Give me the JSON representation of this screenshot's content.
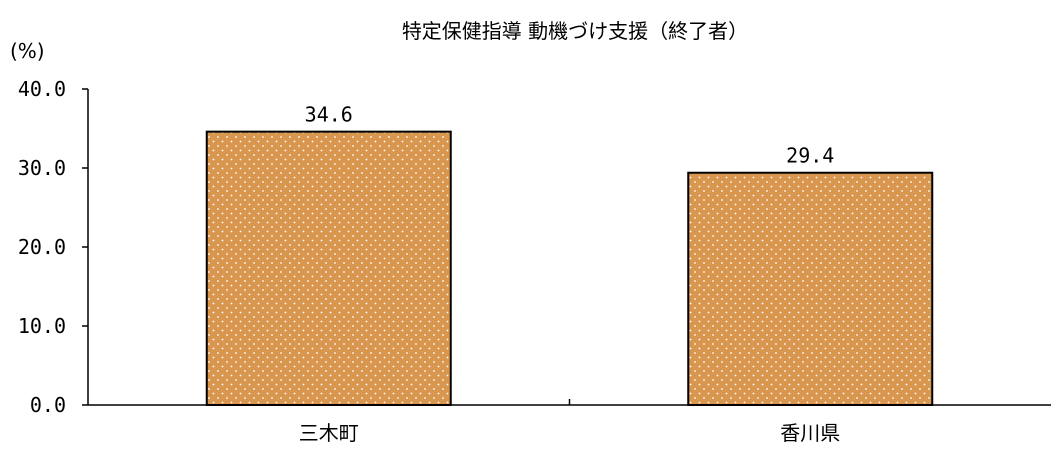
{
  "chart_data": {
    "type": "bar",
    "title": "特定保健指導 動機づけ支援（終了者）",
    "unit_label": "(%)",
    "categories": [
      "三木町",
      "香川県"
    ],
    "values": [
      34.6,
      29.4
    ],
    "data_labels": [
      "34.6",
      "29.4"
    ],
    "ylim": [
      0,
      40
    ],
    "yticks": [
      "0.0",
      "10.0",
      "20.0",
      "30.0",
      "40.0"
    ],
    "ytick_values": [
      0,
      10,
      20,
      30,
      40
    ],
    "grid": false,
    "legend": "none",
    "bar_color": "#D9964E",
    "bar_pattern": "white-dots",
    "bar_border_color": "#000000"
  }
}
